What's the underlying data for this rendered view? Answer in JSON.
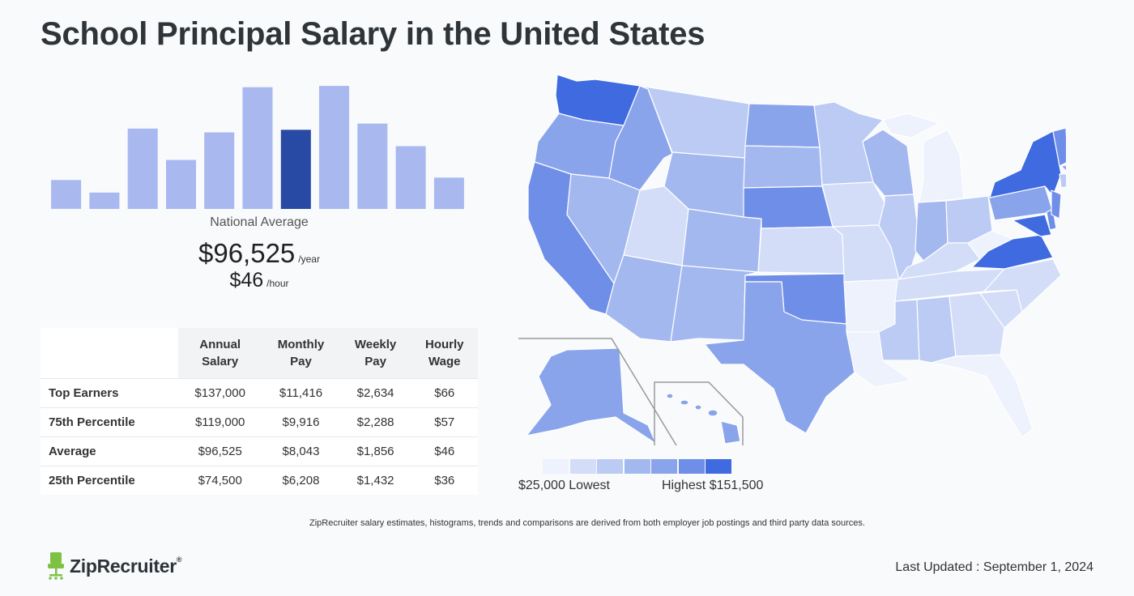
{
  "title": "School Principal Salary in the United States",
  "histogram": {
    "type": "bar",
    "heights": [
      0.23,
      0.13,
      0.64,
      0.39,
      0.61,
      0.97,
      0.63,
      0.98,
      0.68,
      0.5,
      0.25
    ],
    "highlight_index": 6,
    "colors": {
      "bar": "#a9b9f0",
      "highlight": "#2849a4"
    }
  },
  "national_average": {
    "label": "National Average",
    "yearly": "$96,525",
    "yearly_unit": "/year",
    "hourly": "$46",
    "hourly_unit": "/hour"
  },
  "table": {
    "headers": [
      [
        "Annual",
        "Salary"
      ],
      [
        "Monthly",
        "Pay"
      ],
      [
        "Weekly",
        "Pay"
      ],
      [
        "Hourly",
        "Wage"
      ]
    ],
    "rows": [
      {
        "label": "Top Earners",
        "values": [
          "$137,000",
          "$11,416",
          "$2,634",
          "$66"
        ]
      },
      {
        "label": "75th Percentile",
        "values": [
          "$119,000",
          "$9,916",
          "$2,288",
          "$57"
        ]
      },
      {
        "label": "Average",
        "values": [
          "$96,525",
          "$8,043",
          "$1,856",
          "$46"
        ]
      },
      {
        "label": "25th Percentile",
        "values": [
          "$74,500",
          "$6,208",
          "$1,432",
          "$36"
        ]
      }
    ]
  },
  "map": {
    "legend_colors": [
      "#eef2fd",
      "#d3ddf8",
      "#bccbf4",
      "#a4b8f0",
      "#8aa4ec",
      "#6f8ee8",
      "#3f6ae0"
    ],
    "low_label": "$25,000 Lowest",
    "high_label": "Highest $151,500"
  },
  "disclaimer": "ZipRecruiter salary estimates, histograms, trends and comparisons are derived from both employer job postings and third party data sources.",
  "footer": {
    "logo_text": "ZipRecruiter",
    "logo_mark": "®",
    "last_updated": "Last Updated : September 1, 2024"
  },
  "chart_data": {
    "type": "table",
    "title": "School Principal Salary in the United States",
    "columns": [
      "Annual Salary",
      "Monthly Pay",
      "Weekly Pay",
      "Hourly Wage"
    ],
    "rows": [
      {
        "label": "Top Earners",
        "values": [
          137000,
          11416,
          2634,
          66
        ]
      },
      {
        "label": "75th Percentile",
        "values": [
          119000,
          9916,
          2288,
          57
        ]
      },
      {
        "label": "Average",
        "values": [
          96525,
          8043,
          1856,
          46
        ]
      },
      {
        "label": "25th Percentile",
        "values": [
          74500,
          6208,
          1432,
          36
        ]
      }
    ],
    "map_range": {
      "low": 25000,
      "high": 151500
    }
  }
}
